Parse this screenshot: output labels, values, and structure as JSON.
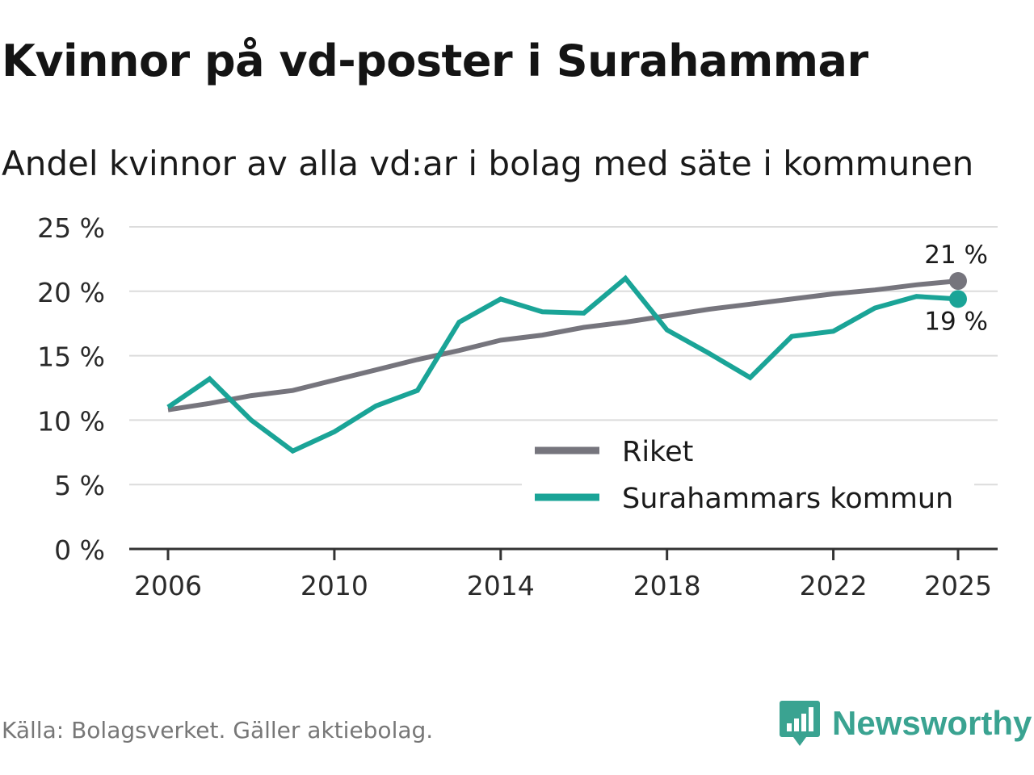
{
  "title": "Kvinnor på vd-poster i Surahammar",
  "subtitle": "Andel kvinnor av alla vd:ar i bolag med säte i kommunen",
  "source": "Källa: Bolagsverket. Gäller aktiebolag.",
  "brand": {
    "name": "Newsworthy",
    "icon": "newsworthy-logo-icon",
    "color": "#3aa391"
  },
  "chart_data": {
    "type": "line",
    "title": "Kvinnor på vd-poster i Surahammar",
    "subtitle": "Andel kvinnor av alla vd:ar i bolag med säte i kommunen",
    "xlabel": "",
    "ylabel": "",
    "x": [
      2006,
      2007,
      2008,
      2009,
      2010,
      2011,
      2012,
      2013,
      2014,
      2015,
      2016,
      2017,
      2018,
      2019,
      2020,
      2021,
      2022,
      2023,
      2024,
      2025
    ],
    "xticks": [
      2006,
      2010,
      2014,
      2018,
      2022,
      2025
    ],
    "xtick_labels": [
      "2006",
      "2010",
      "2014",
      "2018",
      "2022",
      "2025"
    ],
    "ylim": [
      0,
      25
    ],
    "yticks": [
      0,
      5,
      10,
      15,
      20,
      25
    ],
    "ytick_labels": [
      "0 %",
      "5 %",
      "10 %",
      "15 %",
      "20 %",
      "25 %"
    ],
    "grid": true,
    "legend_position": "bottom-right",
    "series": [
      {
        "name": "Riket",
        "color": "#76757d",
        "values": [
          10.8,
          11.3,
          11.9,
          12.3,
          13.1,
          13.9,
          14.7,
          15.4,
          16.2,
          16.6,
          17.2,
          17.6,
          18.1,
          18.6,
          19.0,
          19.4,
          19.8,
          20.1,
          20.5,
          20.8
        ],
        "end_label": "21 %"
      },
      {
        "name": "Surahammars kommun",
        "color": "#1aa497",
        "values": [
          11.0,
          13.2,
          10.0,
          7.6,
          9.1,
          11.1,
          12.3,
          17.6,
          19.4,
          18.4,
          18.3,
          21.0,
          17.0,
          15.2,
          13.3,
          16.5,
          16.9,
          18.7,
          19.6,
          19.4
        ],
        "end_label": "19 %"
      }
    ]
  }
}
